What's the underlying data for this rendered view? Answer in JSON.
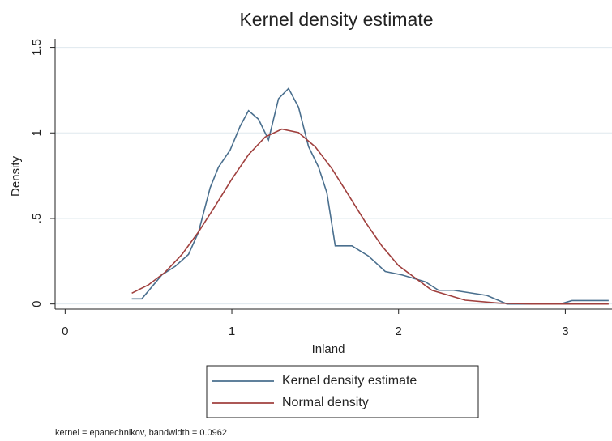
{
  "chart_data": {
    "type": "line",
    "title": "Kernel density estimate",
    "xlabel": "Inland",
    "ylabel": "Density",
    "note": "kernel = epanechnikov, bandwidth = 0.0962",
    "xlim": [
      -0.06,
      3.28
    ],
    "xticks": [
      0,
      1,
      2,
      3
    ],
    "ylim": [
      -0.03,
      1.55
    ],
    "yticks": [
      0,
      {
        "value": 0.5,
        "label": ".5"
      },
      1,
      1.5
    ],
    "grid": true,
    "legend": "bottom",
    "series": [
      {
        "name": "Kernel density estimate",
        "color": "#4a6f8e",
        "x": [
          0.4,
          0.46,
          0.58,
          0.66,
          0.74,
          0.8,
          0.87,
          0.92,
          0.99,
          1.05,
          1.1,
          1.16,
          1.22,
          1.28,
          1.34,
          1.4,
          1.46,
          1.52,
          1.57,
          1.62,
          1.72,
          1.82,
          1.92,
          2.02,
          2.16,
          2.24,
          2.33,
          2.53,
          2.65,
          2.97,
          3.04,
          3.26
        ],
        "values": [
          0.03,
          0.03,
          0.17,
          0.22,
          0.29,
          0.42,
          0.68,
          0.8,
          0.9,
          1.04,
          1.13,
          1.08,
          0.96,
          1.2,
          1.26,
          1.15,
          0.92,
          0.8,
          0.65,
          0.34,
          0.34,
          0.28,
          0.19,
          0.17,
          0.13,
          0.08,
          0.08,
          0.05,
          0.0,
          0.0,
          0.02,
          0.02
        ]
      },
      {
        "name": "Normal density",
        "color": "#a0403e",
        "x": [
          0.4,
          0.5,
          0.6,
          0.7,
          0.8,
          0.9,
          1.0,
          1.1,
          1.2,
          1.3,
          1.4,
          1.5,
          1.6,
          1.7,
          1.8,
          1.9,
          2.0,
          2.2,
          2.4,
          2.6,
          2.8,
          3.0,
          3.26
        ],
        "values": [
          0.063,
          0.112,
          0.186,
          0.289,
          0.421,
          0.573,
          0.73,
          0.873,
          0.976,
          1.022,
          1.002,
          0.919,
          0.791,
          0.636,
          0.48,
          0.339,
          0.224,
          0.08,
          0.022,
          0.005,
          0.0,
          0.0,
          0.0
        ]
      }
    ]
  }
}
